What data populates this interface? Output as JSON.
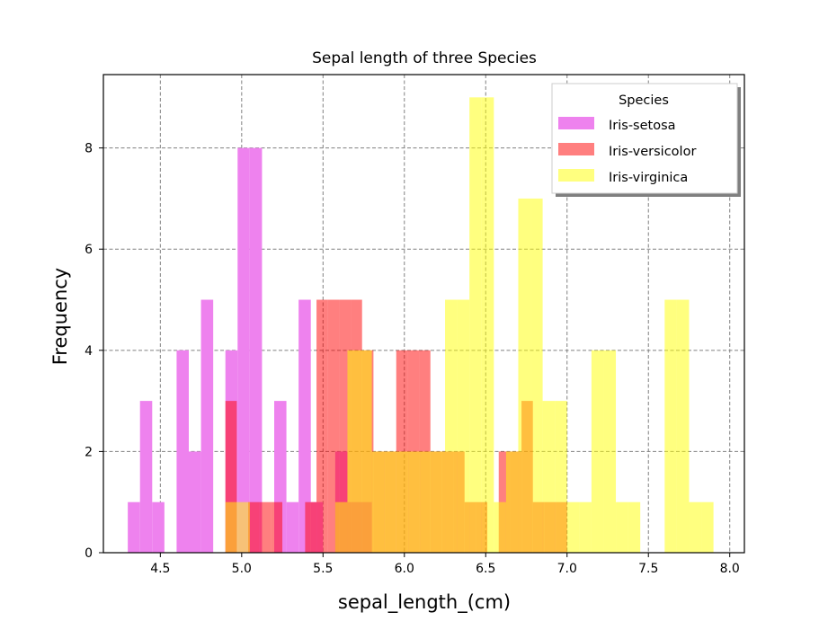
{
  "chart_data": {
    "type": "bar",
    "title": "Sepal length of three Species",
    "xlabel": "sepal_length_(cm)",
    "ylabel": "Frequency",
    "xlim": [
      4.15,
      8.09
    ],
    "ylim": [
      0,
      9.45
    ],
    "xticks": [
      "4.5",
      "5.0",
      "5.5",
      "6.0",
      "6.5",
      "7.0",
      "7.5",
      "8.0"
    ],
    "yticks": [
      "0",
      "2",
      "4",
      "6",
      "8"
    ],
    "grid": true,
    "legend": {
      "title": "Species",
      "placement": "top-right"
    },
    "series": [
      {
        "name": "Iris-setosa",
        "color": "#ee82ee",
        "opacity": 1.0,
        "bin_width": 0.075,
        "bins": [
          [
            4.3,
            1
          ],
          [
            4.375,
            3
          ],
          [
            4.45,
            1
          ],
          [
            4.6,
            4
          ],
          [
            4.675,
            2
          ],
          [
            4.75,
            5
          ],
          [
            4.9,
            4
          ],
          [
            4.975,
            8
          ],
          [
            5.05,
            8
          ],
          [
            5.2,
            3
          ],
          [
            5.275,
            1
          ],
          [
            5.35,
            5
          ],
          [
            5.425,
            1
          ],
          [
            5.575,
            2
          ],
          [
            5.65,
            1
          ],
          [
            5.725,
            1
          ]
        ]
      },
      {
        "name": "Iris-versicolor",
        "color": "#ff0000",
        "opacity": 0.5,
        "bin_width": 0.07,
        "bins": [
          [
            4.9,
            3
          ],
          [
            4.97,
            0
          ],
          [
            5.04,
            1
          ],
          [
            5.11,
            1
          ],
          [
            5.18,
            1
          ],
          [
            5.25,
            0
          ],
          [
            5.32,
            0
          ],
          [
            5.39,
            1
          ],
          [
            5.46,
            5
          ],
          [
            5.53,
            5
          ],
          [
            5.6,
            5
          ],
          [
            5.67,
            5
          ],
          [
            5.74,
            4
          ],
          [
            5.81,
            2
          ],
          [
            5.88,
            2
          ],
          [
            5.95,
            4
          ],
          [
            6.02,
            4
          ],
          [
            6.09,
            4
          ],
          [
            6.16,
            2
          ],
          [
            6.23,
            2
          ],
          [
            6.3,
            2
          ],
          [
            6.37,
            1
          ],
          [
            6.44,
            1
          ],
          [
            6.51,
            0
          ],
          [
            6.58,
            2
          ],
          [
            6.65,
            2
          ],
          [
            6.72,
            3
          ],
          [
            6.79,
            1
          ],
          [
            6.86,
            1
          ],
          [
            6.93,
            1
          ]
        ]
      },
      {
        "name": "Iris-virginica",
        "color": "#ffff00",
        "opacity": 0.5,
        "bin_width": 0.075,
        "bins": [
          [
            4.9,
            1
          ],
          [
            4.975,
            1
          ],
          [
            5.05,
            0
          ],
          [
            5.125,
            0
          ],
          [
            5.2,
            0
          ],
          [
            5.275,
            0
          ],
          [
            5.35,
            0
          ],
          [
            5.425,
            0
          ],
          [
            5.5,
            0
          ],
          [
            5.575,
            1
          ],
          [
            5.65,
            4
          ],
          [
            5.725,
            4
          ],
          [
            5.8,
            2
          ],
          [
            5.875,
            2
          ],
          [
            5.95,
            2
          ],
          [
            6.025,
            2
          ],
          [
            6.1,
            2
          ],
          [
            6.175,
            2
          ],
          [
            6.25,
            5
          ],
          [
            6.325,
            5
          ],
          [
            6.4,
            9
          ],
          [
            6.475,
            9
          ],
          [
            6.55,
            1
          ],
          [
            6.625,
            2
          ],
          [
            6.7,
            7
          ],
          [
            6.775,
            7
          ],
          [
            6.85,
            3
          ],
          [
            6.925,
            3
          ],
          [
            7.0,
            1
          ],
          [
            7.075,
            1
          ],
          [
            7.15,
            4
          ],
          [
            7.225,
            4
          ],
          [
            7.3,
            1
          ],
          [
            7.375,
            1
          ],
          [
            7.45,
            0
          ],
          [
            7.525,
            0
          ],
          [
            7.6,
            5
          ],
          [
            7.675,
            5
          ],
          [
            7.75,
            1
          ],
          [
            7.825,
            1
          ]
        ]
      }
    ]
  }
}
